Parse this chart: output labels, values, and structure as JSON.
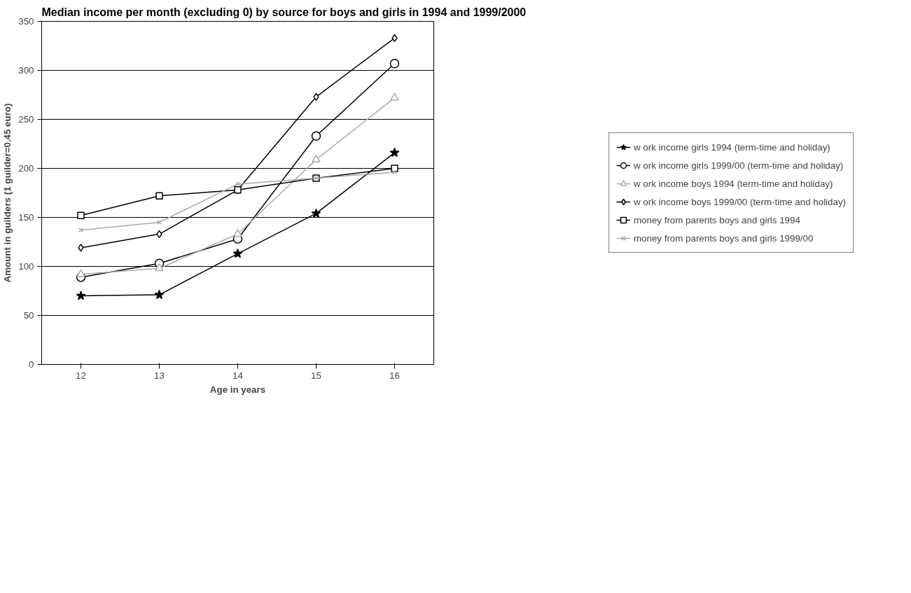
{
  "chart_data": {
    "type": "line",
    "title": "Median income per month (excluding 0)  by source for boys and girls in 1994 and 1999/2000",
    "xlabel": "Age in years",
    "ylabel": "Amount in guilders (1 guilder=0.45 euro)",
    "categories": [
      "12",
      "13",
      "14",
      "15",
      "16"
    ],
    "ylim": [
      0,
      350
    ],
    "yticks": [
      0,
      50,
      100,
      150,
      200,
      250,
      300,
      350
    ],
    "grid": "y",
    "legend": "right",
    "series": [
      {
        "name": "w ork income girls 1994 (term-time and holiday)",
        "color": "#000000",
        "marker": "star",
        "values": [
          70,
          71,
          113,
          154,
          216
        ]
      },
      {
        "name": "w ork income girls 1999/00 (term-time and holiday)",
        "color": "#000000",
        "marker": "circle",
        "values": [
          89,
          103,
          128,
          233,
          307
        ]
      },
      {
        "name": "w ork income boys 1994 (term-time and holiday)",
        "color": "#aaaaaa",
        "marker": "triangle",
        "values": [
          92,
          98,
          133,
          209,
          272
        ]
      },
      {
        "name": "w ork income boys 1999/00 (term-time and holiday)",
        "color": "#000000",
        "marker": "diamond",
        "values": [
          119,
          133,
          178,
          273,
          333
        ]
      },
      {
        "name": "money from parents boys and girls 1994",
        "color": "#000000",
        "marker": "square",
        "values": [
          152,
          172,
          178,
          190,
          200
        ]
      },
      {
        "name": "money from parents boys and girls 1999/00",
        "color": "#aaaaaa",
        "marker": "cross",
        "values": [
          137,
          145,
          184,
          190,
          196
        ]
      }
    ]
  }
}
